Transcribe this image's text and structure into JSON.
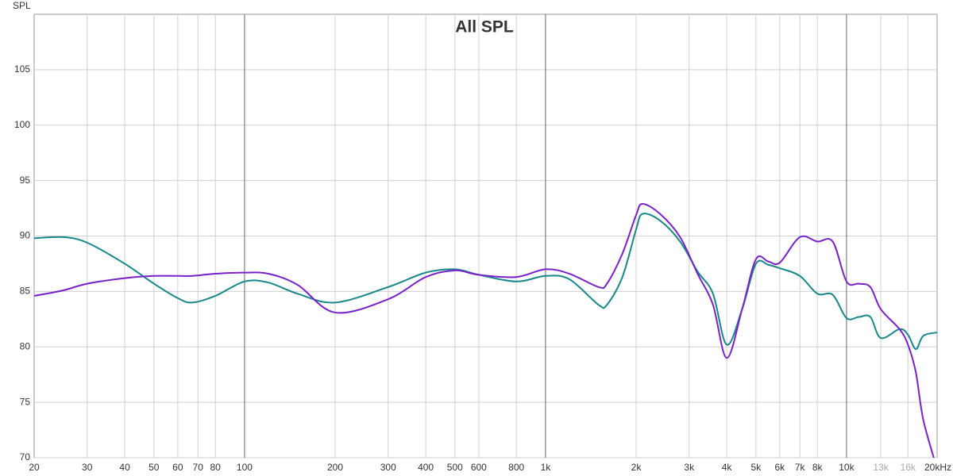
{
  "chart_data": {
    "type": "line",
    "title": "All SPL",
    "y_label": "SPL",
    "log_x": true,
    "grid": true,
    "xlim": [
      20,
      20000
    ],
    "ylim": [
      70,
      110
    ],
    "yticks": [
      70,
      75,
      80,
      85,
      90,
      95,
      100,
      105
    ],
    "xticks": [
      20,
      30,
      40,
      50,
      60,
      70,
      80,
      100,
      200,
      300,
      400,
      500,
      600,
      800,
      {
        "value": 1000,
        "label": "1k"
      },
      {
        "value": 2000,
        "label": "2k"
      },
      {
        "value": 3000,
        "label": "3k"
      },
      {
        "value": 4000,
        "label": "4k"
      },
      {
        "value": 5000,
        "label": "5k"
      },
      {
        "value": 6000,
        "label": "6k"
      },
      {
        "value": 7000,
        "label": "7k"
      },
      {
        "value": 8000,
        "label": "8k"
      },
      {
        "value": 10000,
        "label": "10k"
      },
      {
        "value": 13000,
        "label": "13k",
        "color": "#aaaaaa"
      },
      {
        "value": 16000,
        "label": "16k",
        "color": "#aaaaaa"
      },
      {
        "value": 20000,
        "label": "20kHz"
      }
    ],
    "x": [
      20,
      25,
      30,
      40,
      50,
      60,
      67,
      80,
      100,
      120,
      150,
      200,
      300,
      400,
      500,
      600,
      800,
      1000,
      1200,
      1500,
      1600,
      1800,
      2000,
      2100,
      2400,
      2800,
      3200,
      3600,
      4000,
      4500,
      5000,
      5500,
      6000,
      7000,
      8000,
      9000,
      10000,
      11000,
      12000,
      13000,
      15000,
      16000,
      17000,
      18000,
      20000
    ],
    "series": [
      {
        "name": "Teal",
        "color": "#16888a",
        "values": [
          89.8,
          89.9,
          89.4,
          87.5,
          85.7,
          84.4,
          84.0,
          84.6,
          85.9,
          85.8,
          84.8,
          84.0,
          85.4,
          86.7,
          87.0,
          86.5,
          85.9,
          86.4,
          86.1,
          83.8,
          83.8,
          86.3,
          90.6,
          92.0,
          91.4,
          89.5,
          86.8,
          84.8,
          80.2,
          83.4,
          87.5,
          87.4,
          87.1,
          86.4,
          84.8,
          84.7,
          82.6,
          82.7,
          82.7,
          80.8,
          81.6,
          81.1,
          79.8,
          81.0,
          81.3
        ]
      },
      {
        "name": "Purple",
        "color": "#7a22c9",
        "values": [
          84.6,
          85.1,
          85.7,
          86.2,
          86.4,
          86.4,
          86.4,
          86.6,
          86.7,
          86.6,
          85.6,
          83.1,
          84.3,
          86.3,
          86.9,
          86.5,
          86.3,
          87.0,
          86.6,
          85.4,
          85.7,
          88.4,
          91.9,
          92.9,
          92.0,
          89.9,
          86.6,
          83.8,
          79.0,
          83.4,
          87.9,
          87.7,
          87.6,
          89.9,
          89.5,
          89.5,
          85.9,
          85.7,
          85.4,
          83.4,
          81.6,
          80.2,
          77.7,
          73.4,
          69.0
        ]
      }
    ]
  }
}
